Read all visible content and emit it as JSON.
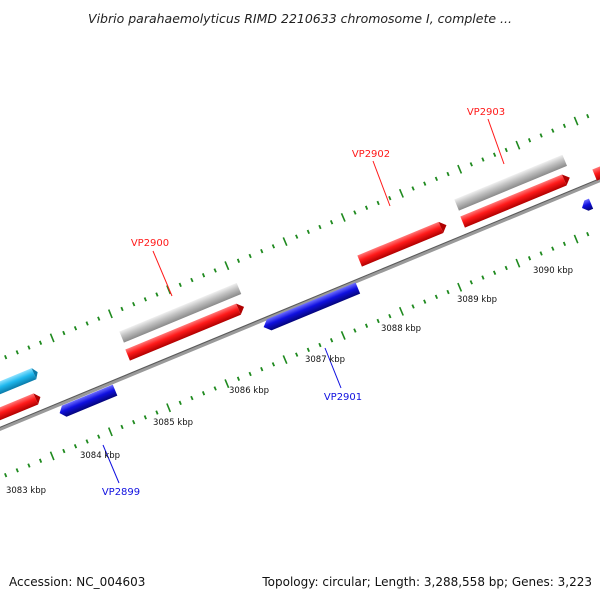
{
  "map": {
    "title": "Vibrio parahaemolyticus RIMD 2210633 chromosome I, complete ...",
    "footer_accession": "Accession: NC_004603",
    "footer_summary": "Topology: circular; Length: 3,288,558 bp; Genes: 3,223"
  },
  "colors": {
    "forward_cds": "#ff1a1a",
    "reverse_cds": "#1010e0",
    "gene_track": "#bfbfbf",
    "other_feature": "#1fb8ee",
    "backbone": "#808080",
    "tick_major": "#1f8a1f",
    "tick_minor": "#2a7a2a"
  },
  "scale_labels": [
    {
      "text": "3083 kbp",
      "kbp": 3083
    },
    {
      "text": "3084 kbp",
      "kbp": 3084
    },
    {
      "text": "3085 kbp",
      "kbp": 3085
    },
    {
      "text": "3086 kbp",
      "kbp": 3086
    },
    {
      "text": "3087 kbp",
      "kbp": 3087
    },
    {
      "text": "3088 kbp",
      "kbp": 3088
    },
    {
      "text": "3089 kbp",
      "kbp": 3089
    },
    {
      "text": "3090 kbp",
      "kbp": 3090
    }
  ],
  "gene_labels": [
    {
      "text": "VP2899",
      "strand": "reverse",
      "color": "#1010e0"
    },
    {
      "text": "VP2900",
      "strand": "forward",
      "color": "#ff1a1a"
    },
    {
      "text": "VP2901",
      "strand": "reverse",
      "color": "#1010e0"
    },
    {
      "text": "VP2902",
      "strand": "forward",
      "color": "#ff1a1a"
    },
    {
      "text": "VP2903",
      "strand": "forward",
      "color": "#ff1a1a"
    }
  ]
}
